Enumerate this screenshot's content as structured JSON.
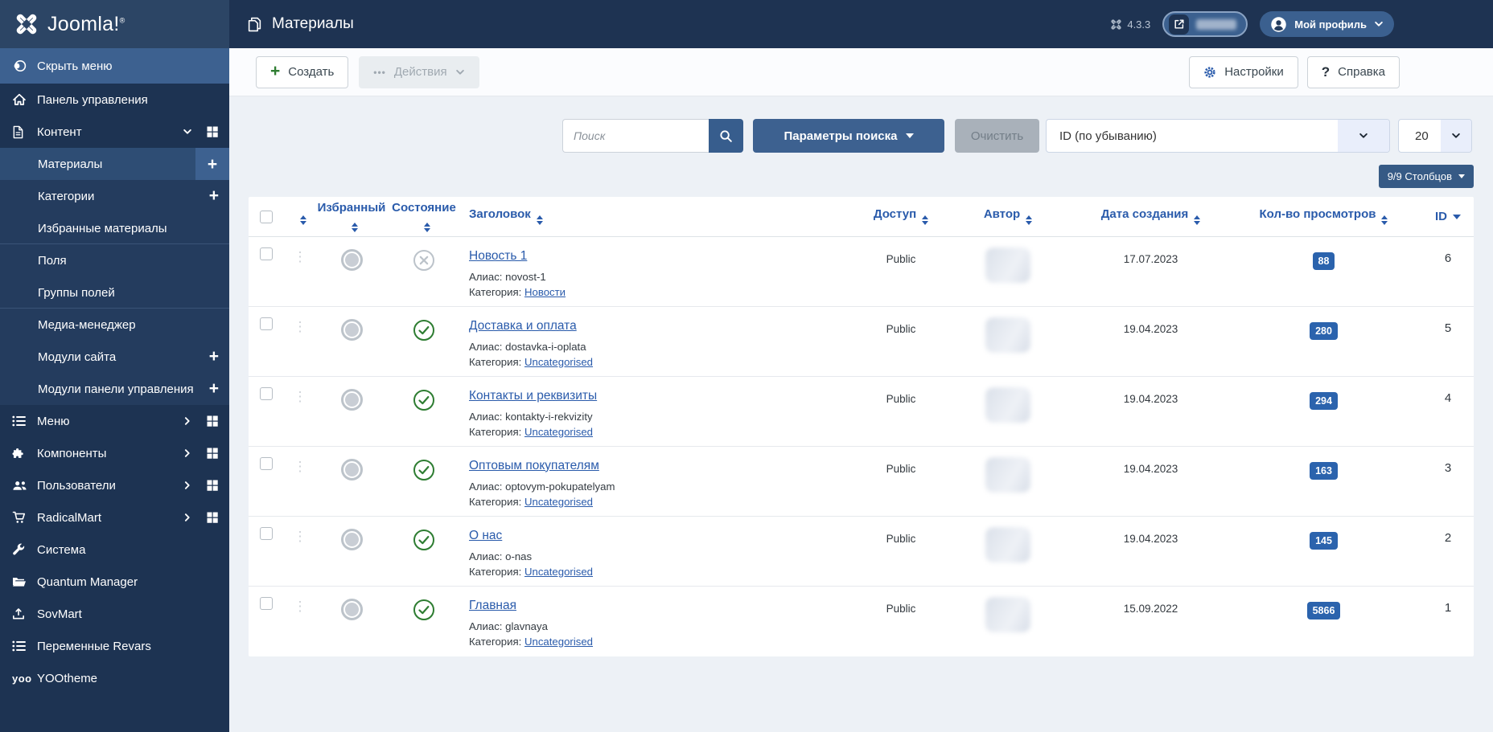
{
  "header": {
    "logo": "Joomla!",
    "logo_reg": "®",
    "page_title": "Материалы",
    "version": "4.3.3",
    "profile": "Мой профиль",
    "site_button_redacted": true
  },
  "toolbar": {
    "new": "Создать",
    "actions_dots": "•••",
    "actions": "Действия",
    "options": "Настройки",
    "help": "Справка"
  },
  "filters": {
    "search_placeholder": "Поиск",
    "search_tools": "Параметры поиска",
    "clear": "Очистить",
    "sort_value": "ID (по убыванию)",
    "per_page_value": "20",
    "columns_button": "9/9 Столбцов"
  },
  "sidebar": {
    "hide_menu": "Скрыть меню",
    "items": [
      {
        "label": "Панель управления",
        "icon": "home-icon",
        "level": 1
      },
      {
        "label": "Контент",
        "icon": "content-icon",
        "level": 1,
        "expand": "down",
        "grid": true
      },
      {
        "label": "Материалы",
        "level": 2,
        "active": true,
        "plus": true
      },
      {
        "label": "Категории",
        "level": 2,
        "plus": true
      },
      {
        "label": "Избранные материалы",
        "level": 2,
        "divider": true
      },
      {
        "label": "Поля",
        "level": 2
      },
      {
        "label": "Группы полей",
        "level": 2,
        "divider": true
      },
      {
        "label": "Медиа-менеджер",
        "level": 2
      },
      {
        "label": "Модули сайта",
        "level": 2,
        "plus": true
      },
      {
        "label": "Модули панели управления",
        "level": 2,
        "plus": true
      },
      {
        "label": "Меню",
        "icon": "menu-list-icon",
        "level": 1,
        "expand": "right",
        "grid": true
      },
      {
        "label": "Компоненты",
        "icon": "components-icon",
        "level": 1,
        "expand": "right",
        "grid": true
      },
      {
        "label": "Пользователи",
        "icon": "users-icon",
        "level": 1,
        "expand": "right",
        "grid": true
      },
      {
        "label": "RadicalMart",
        "icon": "cart-icon",
        "level": 1,
        "expand": "right",
        "grid": true
      },
      {
        "label": "Система",
        "icon": "wrench-icon",
        "level": 1
      },
      {
        "label": "Quantum Manager",
        "icon": "folder-icon",
        "level": 1
      },
      {
        "label": "SovMart",
        "icon": "upload-icon",
        "level": 1
      },
      {
        "label": "Переменные Revars",
        "icon": "menu-list-icon",
        "level": 1
      },
      {
        "label": "YOOtheme",
        "icon": "yoo-icon",
        "level": 1
      }
    ]
  },
  "table": {
    "columns": {
      "featured": "Избранный",
      "state": "Состояние",
      "title": "Заголовок",
      "access": "Доступ",
      "author": "Автор",
      "created": "Дата создания",
      "hits": "Кол-во просмотров",
      "id": "ID"
    },
    "row_labels": {
      "alias": "Алиас:",
      "category": "Категория:"
    },
    "rows": [
      {
        "title": "Новость 1",
        "alias": "novost-1",
        "category": "Новости",
        "access": "Public",
        "author_redacted": true,
        "created": "17.07.2023",
        "hits": "88",
        "id": "6",
        "state": "unpublished",
        "featured": false
      },
      {
        "title": "Доставка и оплата",
        "alias": "dostavka-i-oplata",
        "category": "Uncategorised",
        "access": "Public",
        "author_redacted": true,
        "created": "19.04.2023",
        "hits": "280",
        "id": "5",
        "state": "published",
        "featured": false
      },
      {
        "title": "Контакты и реквизиты",
        "alias": "kontakty-i-rekvizity",
        "category": "Uncategorised",
        "access": "Public",
        "author_redacted": true,
        "created": "19.04.2023",
        "hits": "294",
        "id": "4",
        "state": "published",
        "featured": false
      },
      {
        "title": "Оптовым покупателям",
        "alias": "optovym-pokupatelyam",
        "category": "Uncategorised",
        "access": "Public",
        "author_redacted": true,
        "created": "19.04.2023",
        "hits": "163",
        "id": "3",
        "state": "published",
        "featured": false
      },
      {
        "title": "О нас",
        "alias": "o-nas",
        "category": "Uncategorised",
        "access": "Public",
        "author_redacted": true,
        "created": "19.04.2023",
        "hits": "145",
        "id": "2",
        "state": "published",
        "featured": false
      },
      {
        "title": "Главная",
        "alias": "glavnaya",
        "category": "Uncategorised",
        "access": "Public",
        "author_redacted": true,
        "created": "15.09.2022",
        "hits": "5866",
        "id": "1",
        "state": "published",
        "featured": false
      }
    ]
  },
  "colors": {
    "accent_blue": "#2a5bab",
    "hits_badge": "#2b63ad",
    "published_green": "#2e7d32",
    "header_bar": "#1e3352",
    "logo_block": "#2c4565",
    "sidebar_bg": "#1d3352",
    "submenu_bg": "#243c5e",
    "highlight_blue": "#3d6190",
    "content_bg": "#edf1f6"
  },
  "icons": {
    "joomla-icon": "brand X mark",
    "stack-icon": "pages stack",
    "external-link-icon": "arrow out of box",
    "user-circle-icon": "person in circle",
    "chevron-down-icon": "caret down",
    "chevron-right-icon": "caret right",
    "hide-menu-icon": "toggle circles",
    "home-icon": "house",
    "content-icon": "document",
    "menu-list-icon": "bullet list",
    "components-icon": "puzzle piece",
    "users-icon": "people group",
    "cart-icon": "shopping cart",
    "wrench-icon": "wrench",
    "folder-icon": "open folder",
    "upload-icon": "upload arrow tray",
    "yoo-icon": "yoo lettermark",
    "grid-icon": "four squares",
    "search-icon": "magnifier",
    "gear-icon": "cog",
    "question-icon": "question mark",
    "check-circle-icon": "green check in circle",
    "x-circle-icon": "gray x in circle",
    "drag-handle-icon": "vertical dots"
  }
}
